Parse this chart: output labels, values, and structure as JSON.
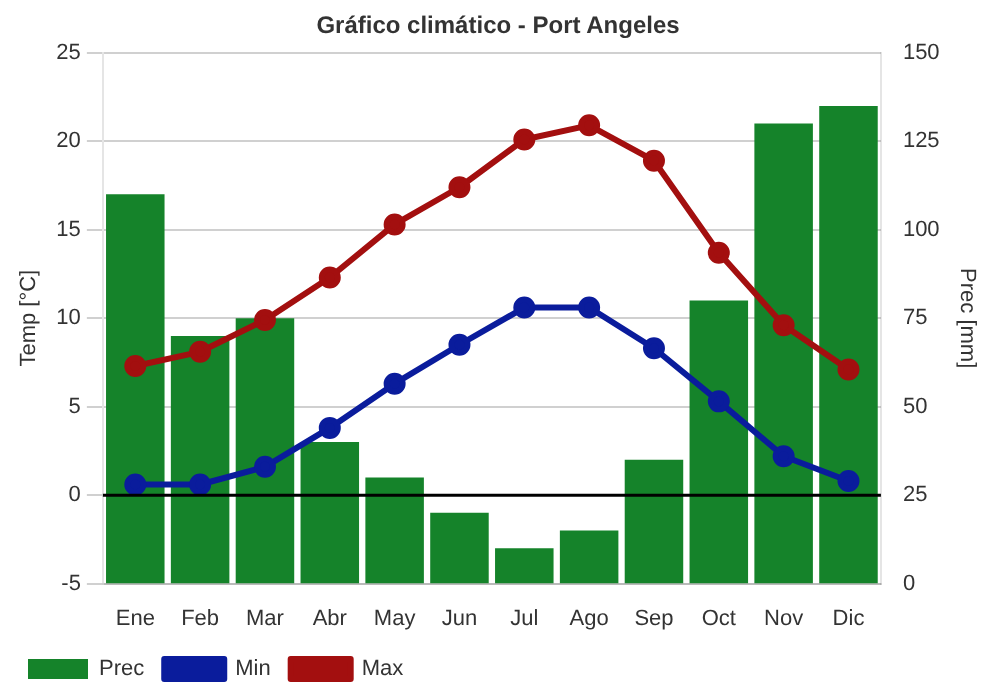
{
  "chart_data": {
    "type": "bar",
    "title": "Gráfico climático - Port Angeles",
    "ylabel": "Temp [°C]",
    "y2label": "Prec [mm]",
    "categories": [
      "Ene",
      "Feb",
      "Mar",
      "Abr",
      "May",
      "Jun",
      "Jul",
      "Ago",
      "Sep",
      "Oct",
      "Nov",
      "Dic"
    ],
    "series": [
      {
        "name": "Prec",
        "axis": "y2",
        "color": "#15832a",
        "values": [
          110,
          70,
          75,
          40,
          30,
          20,
          10,
          15,
          35,
          80,
          130,
          135
        ]
      },
      {
        "name": "Min",
        "type": "line",
        "color": "#0a1c9c",
        "values": [
          0.6,
          0.6,
          1.6,
          3.8,
          6.3,
          8.5,
          10.6,
          10.6,
          8.3,
          5.3,
          2.2,
          0.8
        ]
      },
      {
        "name": "Max",
        "type": "line",
        "color": "#a30f0f",
        "values": [
          7.3,
          8.1,
          9.9,
          12.3,
          15.3,
          17.4,
          20.1,
          20.9,
          18.9,
          13.7,
          9.6,
          7.1
        ]
      }
    ],
    "ylim": [
      -5,
      25
    ],
    "yticks": [
      -5,
      0,
      5,
      10,
      15,
      20,
      25
    ],
    "y2lim": [
      0,
      150
    ],
    "y2ticks": [
      0,
      25,
      50,
      75,
      100,
      125,
      150
    ],
    "ref_lines": [
      {
        "axis": "y",
        "value": 0,
        "color": "#000000"
      }
    ],
    "grid": "y",
    "legend": "bottom left",
    "marker": "circle",
    "line_style": "solid"
  }
}
